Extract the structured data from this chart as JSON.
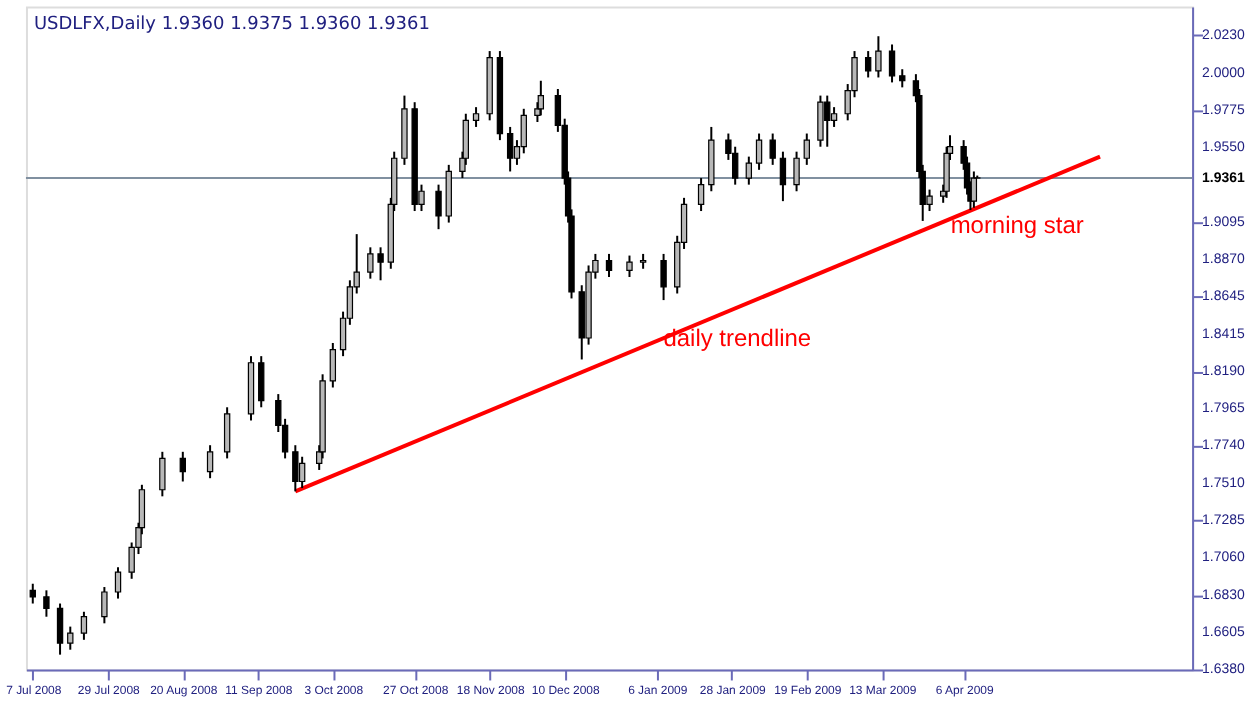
{
  "chart_data": {
    "type": "candlestick",
    "title": "USDLFX,Daily  1.9360 1.9375 1.9360 1.9361",
    "x": [
      "2008-07-07",
      "2008-07-11",
      "2008-07-15",
      "2008-07-18",
      "2008-07-22",
      "2008-07-28",
      "2008-08-01",
      "2008-08-05",
      "2008-08-07",
      "2008-08-08",
      "2008-08-14",
      "2008-08-20",
      "2008-08-28",
      "2008-09-02",
      "2008-09-09",
      "2008-09-12",
      "2008-09-17",
      "2008-09-19",
      "2008-09-22",
      "2008-09-24",
      "2008-09-29",
      "2008-09-30",
      "2008-10-03",
      "2008-10-06",
      "2008-10-08",
      "2008-10-10",
      "2008-10-14",
      "2008-10-17",
      "2008-10-20",
      "2008-10-21",
      "2008-10-24",
      "2008-10-27",
      "2008-10-29",
      "2008-11-03",
      "2008-11-06",
      "2008-11-10",
      "2008-11-11",
      "2008-11-14",
      "2008-11-18",
      "2008-11-21",
      "2008-11-24",
      "2008-11-26",
      "2008-11-28",
      "2008-12-02",
      "2008-12-03",
      "2008-12-08",
      "2008-12-10",
      "2008-12-11",
      "2008-12-12",
      "2008-12-15",
      "2008-12-17",
      "2008-12-19",
      "2008-12-23",
      "2008-12-29",
      "2009-01-02",
      "2009-01-08",
      "2009-01-12",
      "2009-01-14",
      "2009-01-19",
      "2009-01-22",
      "2009-01-27",
      "2009-01-29",
      "2009-02-02",
      "2009-02-05",
      "2009-02-09",
      "2009-02-12",
      "2009-02-16",
      "2009-02-19",
      "2009-02-23",
      "2009-02-25",
      "2009-02-27",
      "2009-03-03",
      "2009-03-05",
      "2009-03-09",
      "2009-03-12",
      "2009-03-16",
      "2009-03-19",
      "2009-03-23",
      "2009-03-24",
      "2009-03-25",
      "2009-03-27",
      "2009-03-31",
      "2009-04-01",
      "2009-04-02",
      "2009-04-06",
      "2009-04-07",
      "2009-04-08",
      "2009-04-09",
      "2009-04-10"
    ],
    "series": [
      {
        "color": "#000000",
        "ohlc": [
          [
            1.686,
            1.69,
            1.678,
            1.682
          ],
          [
            1.682,
            1.686,
            1.67,
            1.675
          ],
          [
            1.675,
            1.678,
            1.647,
            1.654
          ],
          [
            1.654,
            1.664,
            1.65,
            1.66
          ],
          [
            1.66,
            1.673,
            1.656,
            1.67
          ],
          [
            1.67,
            1.688,
            1.666,
            1.685
          ],
          [
            1.685,
            1.7,
            1.681,
            1.697
          ],
          [
            1.697,
            1.715,
            1.693,
            1.712
          ],
          [
            1.712,
            1.727,
            1.708,
            1.724
          ],
          [
            1.724,
            1.75,
            1.72,
            1.747
          ],
          [
            1.747,
            1.77,
            1.743,
            1.766
          ],
          [
            1.766,
            1.77,
            1.752,
            1.758
          ],
          [
            1.758,
            1.774,
            1.754,
            1.77
          ],
          [
            1.77,
            1.797,
            1.766,
            1.793
          ],
          [
            1.793,
            1.828,
            1.789,
            1.824
          ],
          [
            1.824,
            1.828,
            1.797,
            1.801
          ],
          [
            1.801,
            1.805,
            1.782,
            1.786
          ],
          [
            1.786,
            1.79,
            1.766,
            1.77
          ],
          [
            1.77,
            1.774,
            1.746,
            1.752
          ],
          [
            1.752,
            1.767,
            1.748,
            1.763
          ],
          [
            1.763,
            1.774,
            1.759,
            1.77
          ],
          [
            1.77,
            1.817,
            1.766,
            1.813
          ],
          [
            1.813,
            1.836,
            1.809,
            1.832
          ],
          [
            1.832,
            1.855,
            1.828,
            1.851
          ],
          [
            1.851,
            1.874,
            1.847,
            1.87
          ],
          [
            1.87,
            1.902,
            1.866,
            1.879
          ],
          [
            1.879,
            1.894,
            1.875,
            1.89
          ],
          [
            1.89,
            1.894,
            1.874,
            1.885
          ],
          [
            1.885,
            1.924,
            1.881,
            1.92
          ],
          [
            1.92,
            1.952,
            1.916,
            1.948
          ],
          [
            1.948,
            1.986,
            1.944,
            1.978
          ],
          [
            1.978,
            1.982,
            1.916,
            1.92
          ],
          [
            1.92,
            1.932,
            1.916,
            1.928
          ],
          [
            1.928,
            1.932,
            1.905,
            1.913
          ],
          [
            1.913,
            1.944,
            1.909,
            1.94
          ],
          [
            1.94,
            1.952,
            1.936,
            1.948
          ],
          [
            1.948,
            1.975,
            1.944,
            1.971
          ],
          [
            1.971,
            1.979,
            1.967,
            1.975
          ],
          [
            1.975,
            2.013,
            1.971,
            2.009
          ],
          [
            2.009,
            2.013,
            1.959,
            1.963
          ],
          [
            1.963,
            1.967,
            1.94,
            1.948
          ],
          [
            1.948,
            1.959,
            1.944,
            1.955
          ],
          [
            1.955,
            1.978,
            1.951,
            1.974
          ],
          [
            1.974,
            1.982,
            1.97,
            1.978
          ],
          [
            1.978,
            1.995,
            1.974,
            1.986
          ],
          [
            1.986,
            1.99,
            1.964,
            1.968
          ],
          [
            1.968,
            1.972,
            1.932,
            1.936
          ],
          [
            1.936,
            1.94,
            1.909,
            1.913
          ],
          [
            1.913,
            1.917,
            1.863,
            1.867
          ],
          [
            1.867,
            1.871,
            1.826,
            1.839
          ],
          [
            1.839,
            1.883,
            1.835,
            1.879
          ],
          [
            1.879,
            1.89,
            1.875,
            1.886
          ],
          [
            1.886,
            1.89,
            1.876,
            1.88
          ],
          [
            1.88,
            1.889,
            1.876,
            1.885
          ],
          [
            1.885,
            1.89,
            1.881,
            1.886
          ],
          [
            1.886,
            1.89,
            1.862,
            1.87
          ],
          [
            1.87,
            1.901,
            1.866,
            1.897
          ],
          [
            1.897,
            1.924,
            1.893,
            1.92
          ],
          [
            1.92,
            1.936,
            1.916,
            1.932
          ],
          [
            1.932,
            1.967,
            1.928,
            1.959
          ],
          [
            1.959,
            1.963,
            1.947,
            1.951
          ],
          [
            1.951,
            1.955,
            1.932,
            1.936
          ],
          [
            1.936,
            1.949,
            1.932,
            1.945
          ],
          [
            1.945,
            1.963,
            1.941,
            1.959
          ],
          [
            1.959,
            1.963,
            1.944,
            1.948
          ],
          [
            1.948,
            1.952,
            1.922,
            1.932
          ],
          [
            1.932,
            1.952,
            1.928,
            1.948
          ],
          [
            1.948,
            1.963,
            1.944,
            1.959
          ],
          [
            1.959,
            1.986,
            1.955,
            1.982
          ],
          [
            1.982,
            1.986,
            1.955,
            1.971
          ],
          [
            1.971,
            1.979,
            1.967,
            1.975
          ],
          [
            1.975,
            1.993,
            1.971,
            1.989
          ],
          [
            1.989,
            2.013,
            1.985,
            2.009
          ],
          [
            2.009,
            2.013,
            1.997,
            2.001
          ],
          [
            2.001,
            2.022,
            1.997,
            2.013
          ],
          [
            2.013,
            2.017,
            1.994,
            1.998
          ],
          [
            1.998,
            2.002,
            1.991,
            1.995
          ],
          [
            1.995,
            1.999,
            1.982,
            1.986
          ],
          [
            1.986,
            1.99,
            1.936,
            1.94
          ],
          [
            1.94,
            1.944,
            1.91,
            1.92
          ],
          [
            1.92,
            1.929,
            1.916,
            1.925
          ],
          [
            1.925,
            1.932,
            1.921,
            1.928
          ],
          [
            1.928,
            1.955,
            1.924,
            1.951
          ],
          [
            1.951,
            1.962,
            1.947,
            1.955
          ],
          [
            1.955,
            1.959,
            1.941,
            1.945
          ],
          [
            1.945,
            1.949,
            1.926,
            1.93
          ],
          [
            1.93,
            1.934,
            1.9166,
            1.922
          ],
          [
            1.922,
            1.94,
            1.918,
            1.936
          ],
          [
            1.936,
            1.9375,
            1.936,
            1.9361
          ]
        ]
      },
      {
        "type": "line",
        "color": "#ff0000",
        "x": [
          "2008-09-22",
          "2009-05-16"
        ],
        "values": [
          1.746,
          1.949
        ]
      }
    ],
    "xlim": [
      "2008-07-05",
      "2009-06-12"
    ],
    "xticks": [
      {
        "value": "2008-07-07",
        "label": "7 Jul 2008"
      },
      {
        "value": "2008-07-29",
        "label": "29 Jul 2008"
      },
      {
        "value": "2008-08-20",
        "label": "20 Aug 2008"
      },
      {
        "value": "2008-09-11",
        "label": "11 Sep 2008"
      },
      {
        "value": "2008-10-03",
        "label": "3 Oct 2008"
      },
      {
        "value": "2008-10-27",
        "label": "27 Oct 2008"
      },
      {
        "value": "2008-11-18",
        "label": "18 Nov 2008"
      },
      {
        "value": "2008-12-10",
        "label": "10 Dec 2008"
      },
      {
        "value": "2009-01-06",
        "label": "6 Jan 2009"
      },
      {
        "value": "2009-01-28",
        "label": "28 Jan 2009"
      },
      {
        "value": "2009-02-19",
        "label": "19 Feb 2009"
      },
      {
        "value": "2009-03-13",
        "label": "13 Mar 2009"
      },
      {
        "value": "2009-04-06",
        "label": "6 Apr 2009"
      }
    ],
    "ylim": [
      1.638,
      2.04
    ],
    "yticks": [
      {
        "value": 2.023,
        "label": "2.0230"
      },
      {
        "value": 2.0,
        "label": "2.0000"
      },
      {
        "value": 1.9775,
        "label": "1.9775"
      },
      {
        "value": 1.955,
        "label": "1.9550"
      },
      {
        "value": 1.9095,
        "label": "1.9095"
      },
      {
        "value": 1.887,
        "label": "1.8870"
      },
      {
        "value": 1.8645,
        "label": "1.8645"
      },
      {
        "value": 1.8415,
        "label": "1.8415"
      },
      {
        "value": 1.819,
        "label": "1.8190"
      },
      {
        "value": 1.7965,
        "label": "1.7965"
      },
      {
        "value": 1.774,
        "label": "1.7740"
      },
      {
        "value": 1.751,
        "label": "1.7510"
      },
      {
        "value": 1.7285,
        "label": "1.7285"
      },
      {
        "value": 1.706,
        "label": "1.7060"
      },
      {
        "value": 1.683,
        "label": "1.6830"
      },
      {
        "value": 1.6605,
        "label": "1.6605"
      },
      {
        "value": 1.638,
        "label": "1.6380"
      }
    ],
    "ref_lines": [
      {
        "axis": "y",
        "value": 1.9361,
        "label": "1.9361",
        "color": "#8090a0"
      }
    ],
    "annotations": [
      "daily trendline",
      "morning star"
    ],
    "grid": false
  }
}
